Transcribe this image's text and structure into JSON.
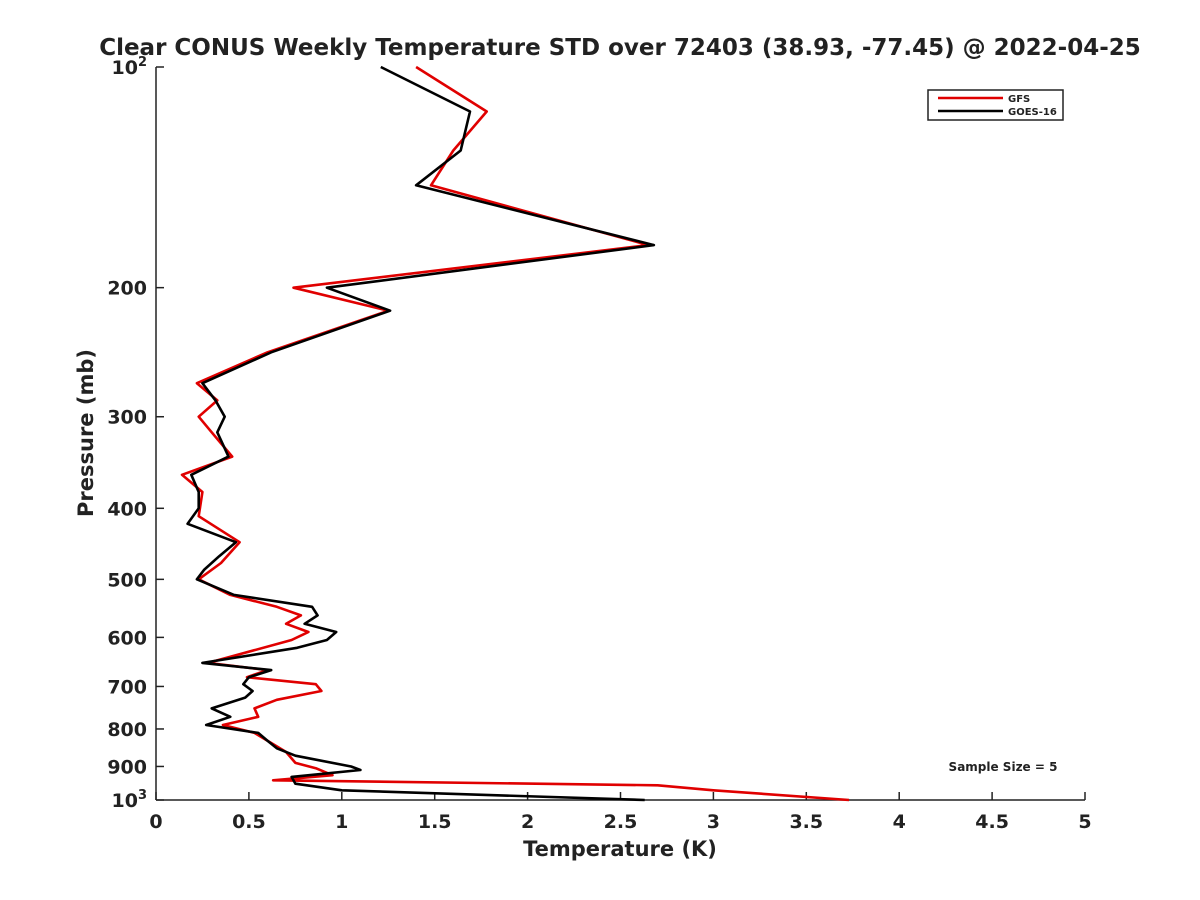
{
  "chart_data": {
    "type": "line",
    "title": "Clear CONUS Weekly Temperature STD over 72403 (38.93, -77.45) @ 2022-04-25",
    "xlabel": "Temperature (K)",
    "ylabel": "Pressure (mb)",
    "xlim": [
      0,
      5
    ],
    "ylim": [
      100,
      1000
    ],
    "y_scale": "log",
    "y_reversed": true,
    "x_ticks": [
      0,
      0.5,
      1,
      1.5,
      2,
      2.5,
      3,
      3.5,
      4,
      4.5,
      5
    ],
    "x_tick_labels": [
      "0",
      "0.5",
      "1",
      "1.5",
      "2",
      "2.5",
      "3",
      "3.5",
      "4",
      "4.5",
      "5"
    ],
    "y_ticks": [
      100,
      200,
      300,
      400,
      500,
      600,
      700,
      800,
      900,
      1000
    ],
    "y_tick_labels": [
      "10^2",
      "200",
      "300",
      "400",
      "500",
      "600",
      "700",
      "800",
      "900",
      "10^3"
    ],
    "grid": false,
    "legend_position": "top-right",
    "annotation": "Sample Size = 5",
    "series": [
      {
        "name": "GFS",
        "color": "#e00000",
        "points": [
          [
            1.4,
            100
          ],
          [
            1.78,
            115
          ],
          [
            1.6,
            130
          ],
          [
            1.48,
            145
          ],
          [
            2.65,
            175
          ],
          [
            0.74,
            200
          ],
          [
            1.25,
            215
          ],
          [
            0.6,
            245
          ],
          [
            0.22,
            270
          ],
          [
            0.33,
            285
          ],
          [
            0.23,
            300
          ],
          [
            0.3,
            315
          ],
          [
            0.41,
            340
          ],
          [
            0.14,
            360
          ],
          [
            0.25,
            380
          ],
          [
            0.23,
            410
          ],
          [
            0.45,
            445
          ],
          [
            0.35,
            475
          ],
          [
            0.23,
            500
          ],
          [
            0.4,
            525
          ],
          [
            0.65,
            545
          ],
          [
            0.78,
            560
          ],
          [
            0.7,
            575
          ],
          [
            0.82,
            590
          ],
          [
            0.73,
            605
          ],
          [
            0.28,
            650
          ],
          [
            0.6,
            665
          ],
          [
            0.49,
            680
          ],
          [
            0.86,
            695
          ],
          [
            0.89,
            710
          ],
          [
            0.65,
            730
          ],
          [
            0.53,
            750
          ],
          [
            0.55,
            770
          ],
          [
            0.36,
            790
          ],
          [
            0.53,
            810
          ],
          [
            0.6,
            830
          ],
          [
            0.7,
            860
          ],
          [
            0.75,
            890
          ],
          [
            0.86,
            905
          ],
          [
            0.95,
            925
          ],
          [
            0.63,
            940
          ],
          [
            2.7,
            955
          ],
          [
            3.0,
            970
          ],
          [
            3.73,
            1000
          ]
        ]
      },
      {
        "name": "GOES-16",
        "color": "#000000",
        "points": [
          [
            1.21,
            100
          ],
          [
            1.69,
            115
          ],
          [
            1.64,
            130
          ],
          [
            1.4,
            145
          ],
          [
            2.68,
            175
          ],
          [
            0.92,
            200
          ],
          [
            1.26,
            215
          ],
          [
            0.62,
            245
          ],
          [
            0.25,
            270
          ],
          [
            0.32,
            285
          ],
          [
            0.37,
            300
          ],
          [
            0.33,
            315
          ],
          [
            0.39,
            340
          ],
          [
            0.19,
            360
          ],
          [
            0.23,
            380
          ],
          [
            0.23,
            400
          ],
          [
            0.17,
            420
          ],
          [
            0.43,
            445
          ],
          [
            0.34,
            465
          ],
          [
            0.26,
            485
          ],
          [
            0.22,
            500
          ],
          [
            0.42,
            525
          ],
          [
            0.84,
            545
          ],
          [
            0.87,
            560
          ],
          [
            0.8,
            575
          ],
          [
            0.97,
            590
          ],
          [
            0.92,
            605
          ],
          [
            0.76,
            620
          ],
          [
            0.25,
            650
          ],
          [
            0.62,
            665
          ],
          [
            0.5,
            680
          ],
          [
            0.47,
            695
          ],
          [
            0.52,
            710
          ],
          [
            0.48,
            725
          ],
          [
            0.3,
            750
          ],
          [
            0.4,
            770
          ],
          [
            0.27,
            790
          ],
          [
            0.55,
            810
          ],
          [
            0.6,
            830
          ],
          [
            0.65,
            850
          ],
          [
            0.75,
            870
          ],
          [
            1.05,
            900
          ],
          [
            1.1,
            910
          ],
          [
            0.73,
            930
          ],
          [
            0.75,
            950
          ],
          [
            1.0,
            970
          ],
          [
            2.63,
            1000
          ]
        ]
      }
    ]
  }
}
